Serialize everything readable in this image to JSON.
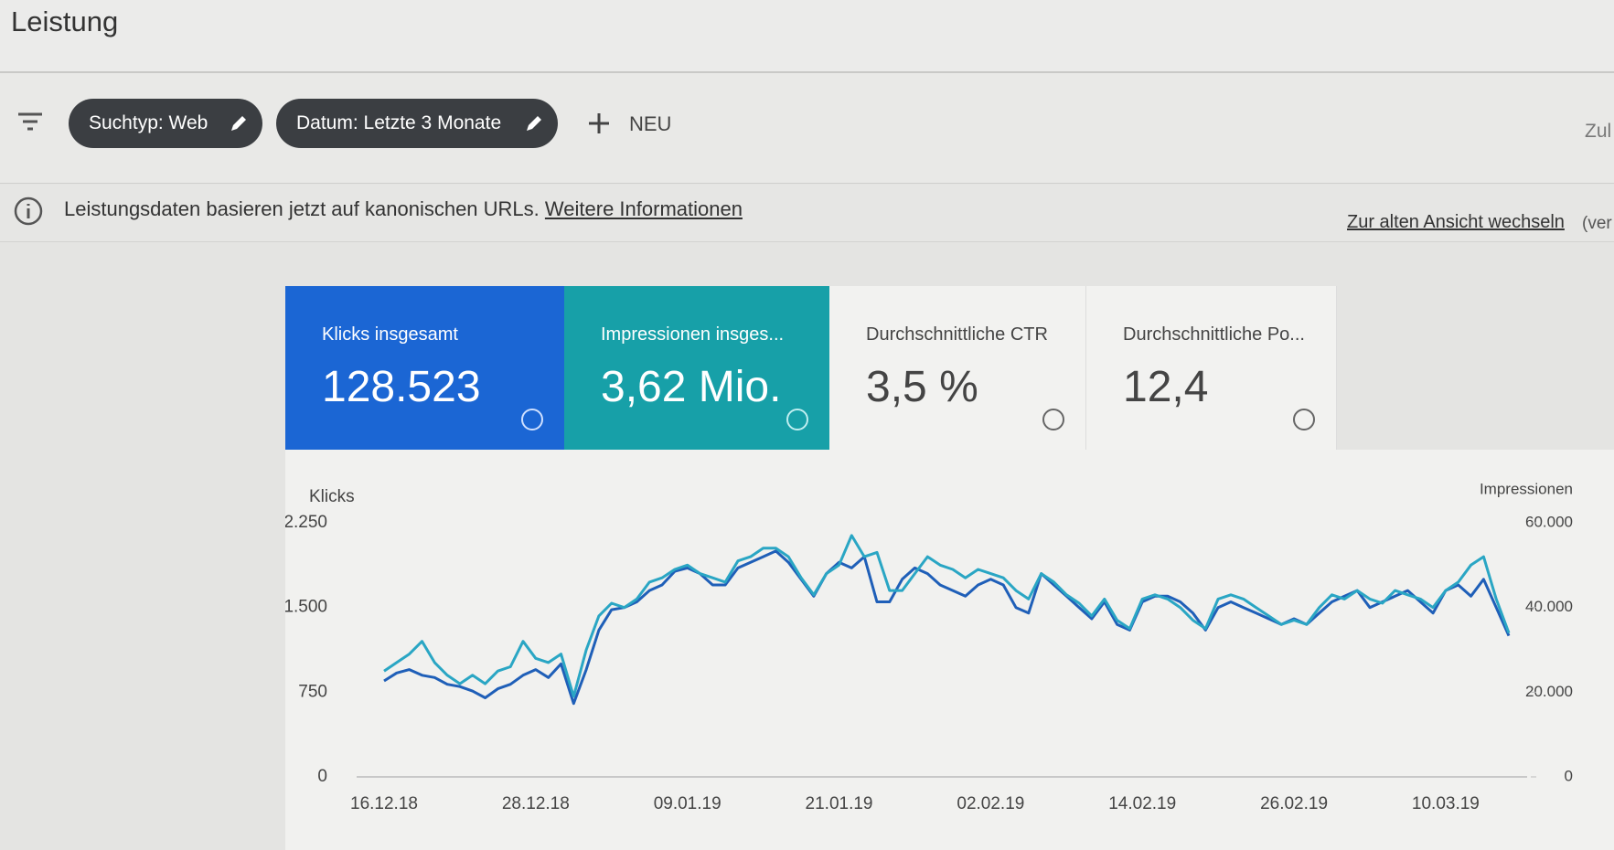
{
  "header": {
    "title": "Leistung"
  },
  "filters": {
    "chips": [
      "Suchtyp: Web",
      "Datum: Letzte 3 Monate"
    ],
    "new": "NEU",
    "cropped": "Zul"
  },
  "notice": {
    "text": "Leistungsdaten basieren jetzt auf kanonischen URLs.",
    "link": "Weitere Informationen",
    "switch": "Zur alten Ansicht wechseln",
    "cropped": "(ver"
  },
  "metrics": [
    {
      "label": "Klicks insgesamt",
      "value": "128.523"
    },
    {
      "label": "Impressionen insges...",
      "value": "3,62 Mio."
    },
    {
      "label": "Durchschnittliche CTR",
      "value": "3,5 %"
    },
    {
      "label": "Durchschnittliche Po...",
      "value": "12,4"
    }
  ],
  "chart_data": {
    "type": "line",
    "ylabel": "Klicks",
    "y2label": "Impressionen",
    "categories": [
      "16.12.18",
      null,
      null,
      null,
      null,
      null,
      null,
      null,
      null,
      null,
      null,
      null,
      "28.12.18",
      null,
      null,
      null,
      null,
      null,
      null,
      null,
      null,
      null,
      null,
      null,
      "09.01.19",
      null,
      null,
      null,
      null,
      null,
      null,
      null,
      null,
      null,
      null,
      null,
      "21.01.19",
      null,
      null,
      null,
      null,
      null,
      null,
      null,
      null,
      null,
      null,
      null,
      "02.02.19",
      null,
      null,
      null,
      null,
      null,
      null,
      null,
      null,
      null,
      null,
      null,
      "14.02.19",
      null,
      null,
      null,
      null,
      null,
      null,
      null,
      null,
      null,
      null,
      null,
      "26.02.19",
      null,
      null,
      null,
      null,
      null,
      null,
      null,
      null,
      null,
      null,
      null,
      "10.03.19",
      null,
      null,
      null,
      null,
      null
    ],
    "series": [
      {
        "color": "#1f5fb8",
        "values": [
          850,
          920,
          950,
          900,
          880,
          820,
          800,
          760,
          700,
          780,
          820,
          900,
          950,
          880,
          1000,
          650,
          950,
          1300,
          1480,
          1500,
          1550,
          1650,
          1700,
          1820,
          1850,
          1800,
          1700,
          1700,
          1850,
          1900,
          1950,
          2000,
          1900,
          1750,
          1600,
          1800,
          1900,
          1850,
          1950,
          1550,
          1550,
          1750,
          1850,
          1800,
          1700,
          1650,
          1600,
          1700,
          1750,
          1700,
          1500,
          1450,
          1800,
          1700,
          1600,
          1500,
          1400,
          1550,
          1350,
          1300,
          1550,
          1600,
          1600,
          1550,
          1450,
          1300,
          1500,
          1550,
          1500,
          1450,
          1400,
          1350,
          1400,
          1350,
          1450,
          1550,
          1600,
          1650,
          1500,
          1550,
          1600,
          1650,
          1550,
          1450,
          1650,
          1700,
          1600,
          1750,
          1500,
          1250
        ]
      },
      {
        "color": "#2aa6c4",
        "axis": "y2",
        "values": [
          25000,
          27000,
          29000,
          32000,
          27000,
          24000,
          22000,
          24000,
          22000,
          25000,
          26000,
          32000,
          28000,
          27000,
          29000,
          19000,
          30000,
          38000,
          41000,
          40000,
          42000,
          46000,
          47000,
          49000,
          50000,
          48000,
          47000,
          46000,
          51000,
          52000,
          54000,
          54000,
          52000,
          47000,
          43000,
          48000,
          50000,
          57000,
          52000,
          53000,
          44000,
          44000,
          48000,
          52000,
          50000,
          49000,
          47000,
          49000,
          48000,
          47000,
          44000,
          42000,
          48000,
          46000,
          43000,
          41000,
          38000,
          42000,
          37000,
          35000,
          42000,
          43000,
          42000,
          40000,
          37000,
          35000,
          42000,
          43000,
          42000,
          40000,
          38000,
          36000,
          37000,
          36000,
          40000,
          43000,
          42000,
          44000,
          42000,
          41000,
          44000,
          43000,
          42000,
          40000,
          44000,
          46000,
          50000,
          52000,
          42000,
          34000
        ]
      }
    ],
    "ylim": [
      0,
      2250
    ],
    "yticks": [
      0,
      750,
      {
        "value": 1500,
        "label": "1.500"
      },
      {
        "value": 2250,
        "label": "2.250"
      }
    ],
    "y2lim": [
      0,
      60000
    ],
    "y2ticks": [
      0,
      {
        "value": 20000,
        "label": "20.000"
      },
      {
        "value": 40000,
        "label": "40.000"
      },
      {
        "value": 60000,
        "label": "60.000"
      }
    ],
    "grid": false
  }
}
